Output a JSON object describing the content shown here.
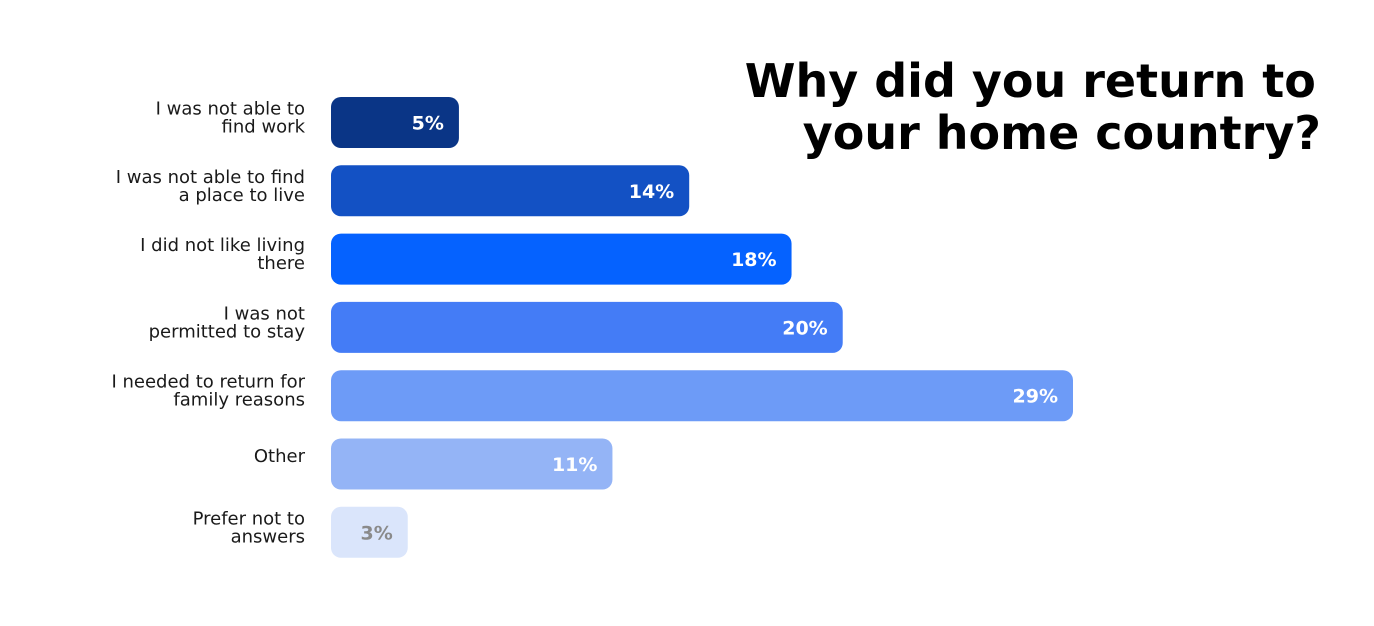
{
  "chart_data": {
    "type": "bar",
    "orientation": "horizontal",
    "title": [
      "Why did you return to",
      "your home country?"
    ],
    "categories": [
      [
        "I was not able to",
        "find work"
      ],
      [
        "I was not able to find",
        "a place to live"
      ],
      [
        "I did not like living",
        "there"
      ],
      [
        "I was not",
        "permitted to stay"
      ],
      [
        "I needed to return for",
        "family reasons"
      ],
      [
        "Other"
      ],
      [
        "Prefer not to",
        "answers"
      ]
    ],
    "values": [
      5,
      14,
      18,
      20,
      29,
      11,
      3
    ],
    "value_labels": [
      "5%",
      "14%",
      "18%",
      "20%",
      "29%",
      "11%",
      "3%"
    ],
    "unit": "%",
    "bar_colors": [
      "#0a3586",
      "#1351c4",
      "#0562ff",
      "#447cf6",
      "#6d9bf7",
      "#94b4f6",
      "#dae5fb"
    ],
    "value_label_colors": [
      "#ffffff",
      "#ffffff",
      "#ffffff",
      "#ffffff",
      "#ffffff",
      "#ffffff",
      "#8a8a8a"
    ],
    "xlim": [
      0,
      29
    ],
    "grid": false,
    "legend": false
  }
}
